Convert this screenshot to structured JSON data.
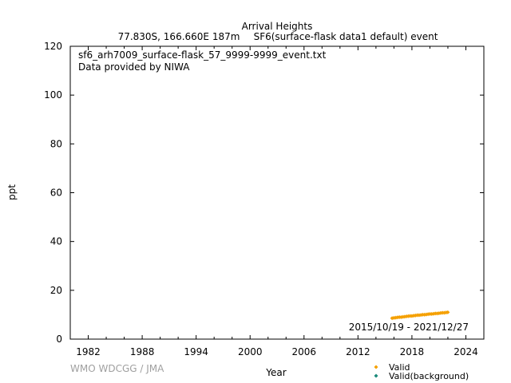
{
  "chart_data": {
    "type": "scatter",
    "title": "Arrival Heights",
    "subtitle_location": "77.830S, 166.660E 187m",
    "subtitle_dataset": "SF6(surface-flask data1 default) event",
    "file_name": "sf6_arh7009_surface-flask_57_9999-9999_event.txt",
    "provider": "Data provided by NIWA",
    "date_range": "2015/10/19 - 2021/12/27",
    "watermark": "WMO WDCGG / JMA",
    "xlabel": "Year",
    "ylabel": "ppt",
    "xlim": [
      1980,
      2026
    ],
    "ylim": [
      0,
      120
    ],
    "x_ticks": [
      1982,
      1988,
      1994,
      2000,
      2006,
      2012,
      2018,
      2024
    ],
    "y_ticks": [
      0,
      20,
      40,
      60,
      80,
      100,
      120
    ],
    "grid": false,
    "legend_placement": "bottom-right",
    "series": [
      {
        "name": "Valid",
        "color": "#f5a000",
        "marker": "diamond",
        "x": [
          2015.8,
          2016.0,
          2016.2,
          2016.4,
          2016.6,
          2016.8,
          2017.0,
          2017.2,
          2017.4,
          2017.6,
          2017.8,
          2018.0,
          2018.2,
          2018.4,
          2018.6,
          2018.8,
          2019.0,
          2019.2,
          2019.4,
          2019.6,
          2019.8,
          2020.0,
          2020.2,
          2020.4,
          2020.6,
          2020.8,
          2021.0,
          2021.2,
          2021.4,
          2021.6,
          2021.8,
          2021.99
        ],
        "y": [
          8.6,
          8.7,
          8.8,
          8.9,
          9.0,
          9.0,
          9.1,
          9.2,
          9.3,
          9.4,
          9.5,
          9.5,
          9.6,
          9.7,
          9.8,
          9.8,
          9.9,
          10.0,
          10.0,
          10.1,
          10.2,
          10.3,
          10.3,
          10.4,
          10.5,
          10.5,
          10.6,
          10.7,
          10.8,
          10.8,
          10.9,
          11.0
        ]
      },
      {
        "name": "Valid(background)",
        "color": "#1a8a7a",
        "marker": "diamond",
        "x": [],
        "y": []
      }
    ]
  }
}
